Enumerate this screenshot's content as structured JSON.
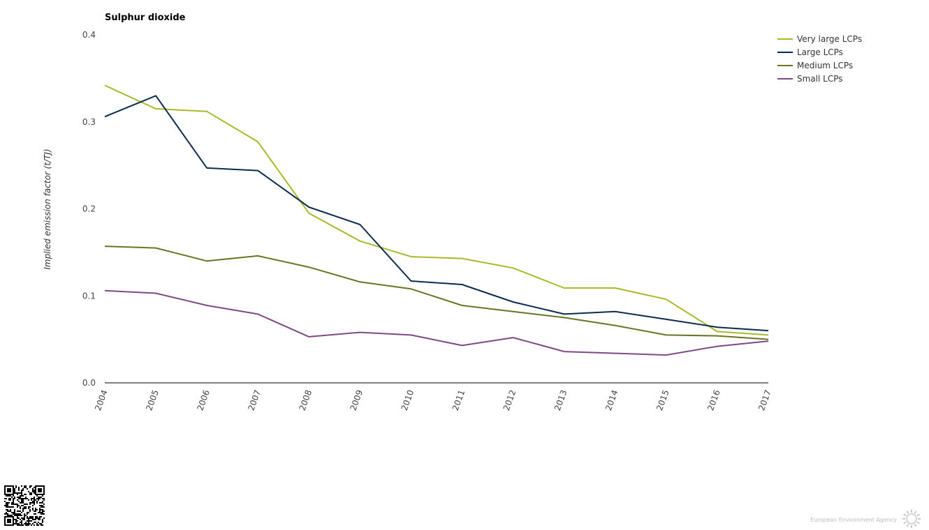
{
  "chart_data": {
    "type": "line",
    "title": "Sulphur dioxide",
    "xlabel": "",
    "ylabel": "Implied emission factor (t/TJ)",
    "x": [
      "2004",
      "2005",
      "2006",
      "2007",
      "2008",
      "2009",
      "2010",
      "2011",
      "2012",
      "2013",
      "2014",
      "2015",
      "2016",
      "2017"
    ],
    "ylim": [
      0,
      0.4
    ],
    "yticks": [
      "0.0",
      "0.1",
      "0.2",
      "0.3",
      "0.4"
    ],
    "grid": false,
    "legend_position": "top-right",
    "series": [
      {
        "name": "Very large LCPs",
        "color": "#a8b92a",
        "values": [
          0.342,
          0.315,
          0.312,
          0.277,
          0.195,
          0.163,
          0.145,
          0.143,
          0.132,
          0.109,
          0.109,
          0.096,
          0.059,
          0.055
        ]
      },
      {
        "name": "Large LCPs",
        "color": "#0d2b4e",
        "values": [
          0.306,
          0.33,
          0.247,
          0.244,
          0.202,
          0.182,
          0.117,
          0.113,
          0.093,
          0.079,
          0.082,
          0.073,
          0.064,
          0.06
        ]
      },
      {
        "name": "Medium LCPs",
        "color": "#6b7325",
        "values": [
          0.157,
          0.155,
          0.14,
          0.146,
          0.133,
          0.116,
          0.108,
          0.089,
          0.082,
          0.075,
          0.066,
          0.055,
          0.054,
          0.05
        ]
      },
      {
        "name": "Small LCPs",
        "color": "#7d4a82",
        "values": [
          0.106,
          0.103,
          0.089,
          0.079,
          0.053,
          0.058,
          0.055,
          0.043,
          0.052,
          0.036,
          0.034,
          0.032,
          0.042,
          0.048
        ]
      }
    ]
  },
  "footer": {
    "agency": "European Environment Agency"
  }
}
